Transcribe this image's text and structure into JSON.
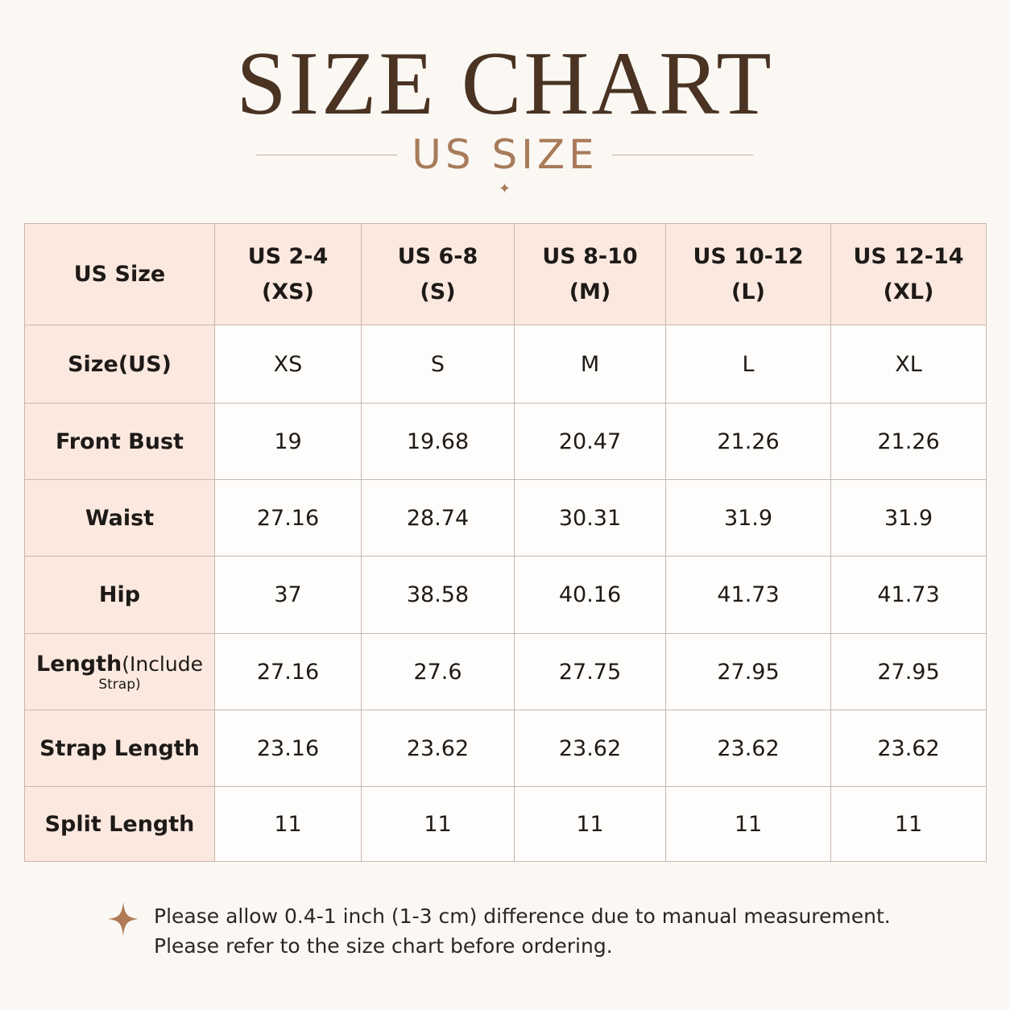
{
  "header": {
    "title": "SIZE CHART",
    "subtitle": "US SIZE"
  },
  "table": {
    "corner": "US Size",
    "columns": [
      {
        "size": "US 2-4",
        "label": "(XS)"
      },
      {
        "size": "US 6-8",
        "label": "(S)"
      },
      {
        "size": "US 8-10",
        "label": "(M)"
      },
      {
        "size": "US 10-12",
        "label": "(L)"
      },
      {
        "size": "US 12-14",
        "label": "(XL)"
      }
    ],
    "rows": [
      {
        "label": "Size(US)",
        "cells": [
          "XS",
          "S",
          "M",
          "L",
          "XL"
        ]
      },
      {
        "label": "Front Bust",
        "cells": [
          "19",
          "19.68",
          "20.47",
          "21.26",
          "21.26"
        ]
      },
      {
        "label": "Waist",
        "cells": [
          "27.16",
          "28.74",
          "30.31",
          "31.9",
          "31.9"
        ]
      },
      {
        "label": "Hip",
        "cells": [
          "37",
          "38.58",
          "40.16",
          "41.73",
          "41.73"
        ]
      },
      {
        "label": "Length",
        "note": "(Include",
        "note2": "Strap)",
        "cells": [
          "27.16",
          "27.6",
          "27.75",
          "27.95",
          "27.95"
        ]
      },
      {
        "label": "Strap Length",
        "cells": [
          "23.16",
          "23.62",
          "23.62",
          "23.62",
          "23.62"
        ]
      },
      {
        "label": "Split Length",
        "cells": [
          "11",
          "11",
          "11",
          "11",
          "11"
        ]
      }
    ]
  },
  "notes": [
    "Please allow 0.4-1 inch (1-3 cm) difference due to manual measurement.",
    "Please refer to the size chart before ordering."
  ]
}
